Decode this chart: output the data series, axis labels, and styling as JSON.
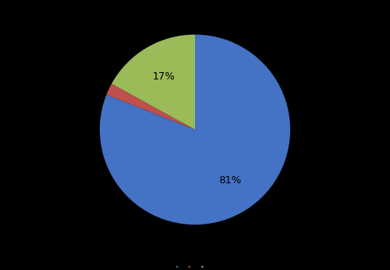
{
  "labels": [
    "Wages & Salaries",
    "Employee Benefits",
    "Operating Expenses"
  ],
  "values": [
    81,
    2,
    17
  ],
  "colors": [
    "#4472C4",
    "#C0504D",
    "#9BBB59"
  ],
  "background_color": "#000000",
  "text_color": "#000000",
  "figsize": [
    4.8,
    3.33
  ],
  "dpi": 100,
  "pct_fontsize": 9,
  "legend_fontsize": 1,
  "legend_marker_size": 6
}
